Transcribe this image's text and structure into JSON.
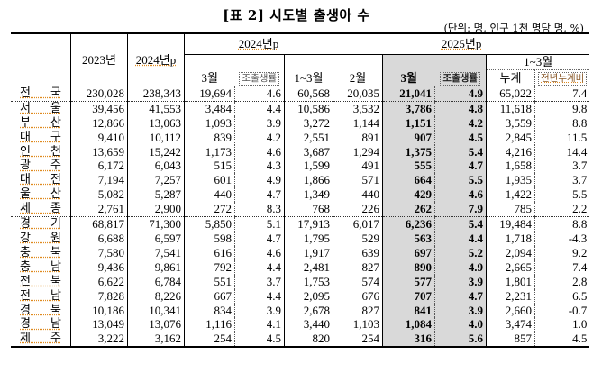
{
  "title": "[표 2] 시도별 출생아 수",
  "unit": "(단위: 명, 인구 1천 명당 명, %)",
  "headers": {
    "col_2023": "2023년",
    "col_2024": "2024년p",
    "group_2024p": "2024년p",
    "group_2025p": "2025년p",
    "mar": "3월",
    "cbr": "조출생률",
    "jan_mar": "1~3월",
    "feb": "2월",
    "mar_2025": "3월",
    "cbr_2025": "조출생률",
    "jan_mar_2025": "1~3월",
    "cumulative": "누계",
    "yoy_cumulative": "전년누계비"
  },
  "rows": [
    {
      "region": "전 국",
      "y2023": "230,028",
      "y2024": "238,343",
      "m3_2024": "19,694",
      "cbr_2024": "4.6",
      "q1_2024": "60,568",
      "m2_2025": "20,035",
      "m3_2025": "21,041",
      "cbr_2025": "4.9",
      "q1_2025": "65,022",
      "yoy": "7.4"
    },
    {
      "region": "서 울",
      "y2023": "39,456",
      "y2024": "41,553",
      "m3_2024": "3,484",
      "cbr_2024": "4.4",
      "q1_2024": "10,586",
      "m2_2025": "3,532",
      "m3_2025": "3,786",
      "cbr_2025": "4.8",
      "q1_2025": "11,618",
      "yoy": "9.8"
    },
    {
      "region": "부 산",
      "y2023": "12,866",
      "y2024": "13,063",
      "m3_2024": "1,093",
      "cbr_2024": "3.9",
      "q1_2024": "3,272",
      "m2_2025": "1,144",
      "m3_2025": "1,151",
      "cbr_2025": "4.2",
      "q1_2025": "3,559",
      "yoy": "8.8"
    },
    {
      "region": "대 구",
      "y2023": "9,410",
      "y2024": "10,112",
      "m3_2024": "839",
      "cbr_2024": "4.2",
      "q1_2024": "2,551",
      "m2_2025": "891",
      "m3_2025": "907",
      "cbr_2025": "4.5",
      "q1_2025": "2,845",
      "yoy": "11.5"
    },
    {
      "region": "인 천",
      "y2023": "13,659",
      "y2024": "15,242",
      "m3_2024": "1,173",
      "cbr_2024": "4.6",
      "q1_2024": "3,687",
      "m2_2025": "1,294",
      "m3_2025": "1,375",
      "cbr_2025": "5.4",
      "q1_2025": "4,216",
      "yoy": "14.4"
    },
    {
      "region": "광 주",
      "y2023": "6,172",
      "y2024": "6,043",
      "m3_2024": "515",
      "cbr_2024": "4.3",
      "q1_2024": "1,599",
      "m2_2025": "491",
      "m3_2025": "555",
      "cbr_2025": "4.7",
      "q1_2025": "1,658",
      "yoy": "3.7"
    },
    {
      "region": "대 전",
      "y2023": "7,194",
      "y2024": "7,257",
      "m3_2024": "601",
      "cbr_2024": "4.9",
      "q1_2024": "1,866",
      "m2_2025": "571",
      "m3_2025": "664",
      "cbr_2025": "5.5",
      "q1_2025": "1,935",
      "yoy": "3.7"
    },
    {
      "region": "울 산",
      "y2023": "5,082",
      "y2024": "5,287",
      "m3_2024": "440",
      "cbr_2024": "4.7",
      "q1_2024": "1,349",
      "m2_2025": "440",
      "m3_2025": "429",
      "cbr_2025": "4.6",
      "q1_2025": "1,422",
      "yoy": "5.5"
    },
    {
      "region": "세 종",
      "y2023": "2,761",
      "y2024": "2,900",
      "m3_2024": "272",
      "cbr_2024": "8.3",
      "q1_2024": "768",
      "m2_2025": "226",
      "m3_2025": "262",
      "cbr_2025": "7.9",
      "q1_2025": "785",
      "yoy": "2.2"
    },
    {
      "region": "경 기",
      "y2023": "68,817",
      "y2024": "71,300",
      "m3_2024": "5,850",
      "cbr_2024": "5.1",
      "q1_2024": "17,913",
      "m2_2025": "6,017",
      "m3_2025": "6,236",
      "cbr_2025": "5.4",
      "q1_2025": "19,484",
      "yoy": "8.8"
    },
    {
      "region": "강 원",
      "y2023": "6,688",
      "y2024": "6,597",
      "m3_2024": "598",
      "cbr_2024": "4.7",
      "q1_2024": "1,795",
      "m2_2025": "529",
      "m3_2025": "563",
      "cbr_2025": "4.4",
      "q1_2025": "1,718",
      "yoy": "-4.3"
    },
    {
      "region": "충 북",
      "y2023": "7,580",
      "y2024": "7,541",
      "m3_2024": "616",
      "cbr_2024": "4.6",
      "q1_2024": "1,917",
      "m2_2025": "639",
      "m3_2025": "697",
      "cbr_2025": "5.2",
      "q1_2025": "2,094",
      "yoy": "9.2"
    },
    {
      "region": "충 남",
      "y2023": "9,436",
      "y2024": "9,861",
      "m3_2024": "792",
      "cbr_2024": "4.4",
      "q1_2024": "2,481",
      "m2_2025": "827",
      "m3_2025": "890",
      "cbr_2025": "4.9",
      "q1_2025": "2,665",
      "yoy": "7.4"
    },
    {
      "region": "전 북",
      "y2023": "6,622",
      "y2024": "6,784",
      "m3_2024": "551",
      "cbr_2024": "3.7",
      "q1_2024": "1,753",
      "m2_2025": "574",
      "m3_2025": "577",
      "cbr_2025": "3.9",
      "q1_2025": "1,801",
      "yoy": "2.8"
    },
    {
      "region": "전 남",
      "y2023": "7,828",
      "y2024": "8,226",
      "m3_2024": "667",
      "cbr_2024": "4.4",
      "q1_2024": "2,095",
      "m2_2025": "676",
      "m3_2025": "707",
      "cbr_2025": "4.7",
      "q1_2025": "2,231",
      "yoy": "6.5"
    },
    {
      "region": "경 북",
      "y2023": "10,186",
      "y2024": "10,341",
      "m3_2024": "834",
      "cbr_2024": "3.9",
      "q1_2024": "2,678",
      "m2_2025": "827",
      "m3_2025": "841",
      "cbr_2025": "3.9",
      "q1_2025": "2,660",
      "yoy": "-0.7"
    },
    {
      "region": "경 남",
      "y2023": "13,049",
      "y2024": "13,076",
      "m3_2024": "1,116",
      "cbr_2024": "4.1",
      "q1_2024": "3,440",
      "m2_2025": "1,103",
      "m3_2025": "1,084",
      "cbr_2025": "4.0",
      "q1_2025": "3,474",
      "yoy": "1.0"
    },
    {
      "region": "제 주",
      "y2023": "3,222",
      "y2024": "3,162",
      "m3_2024": "254",
      "cbr_2024": "4.5",
      "q1_2024": "820",
      "m2_2025": "254",
      "m3_2025": "316",
      "cbr_2025": "5.6",
      "q1_2025": "857",
      "yoy": "4.5"
    }
  ]
}
